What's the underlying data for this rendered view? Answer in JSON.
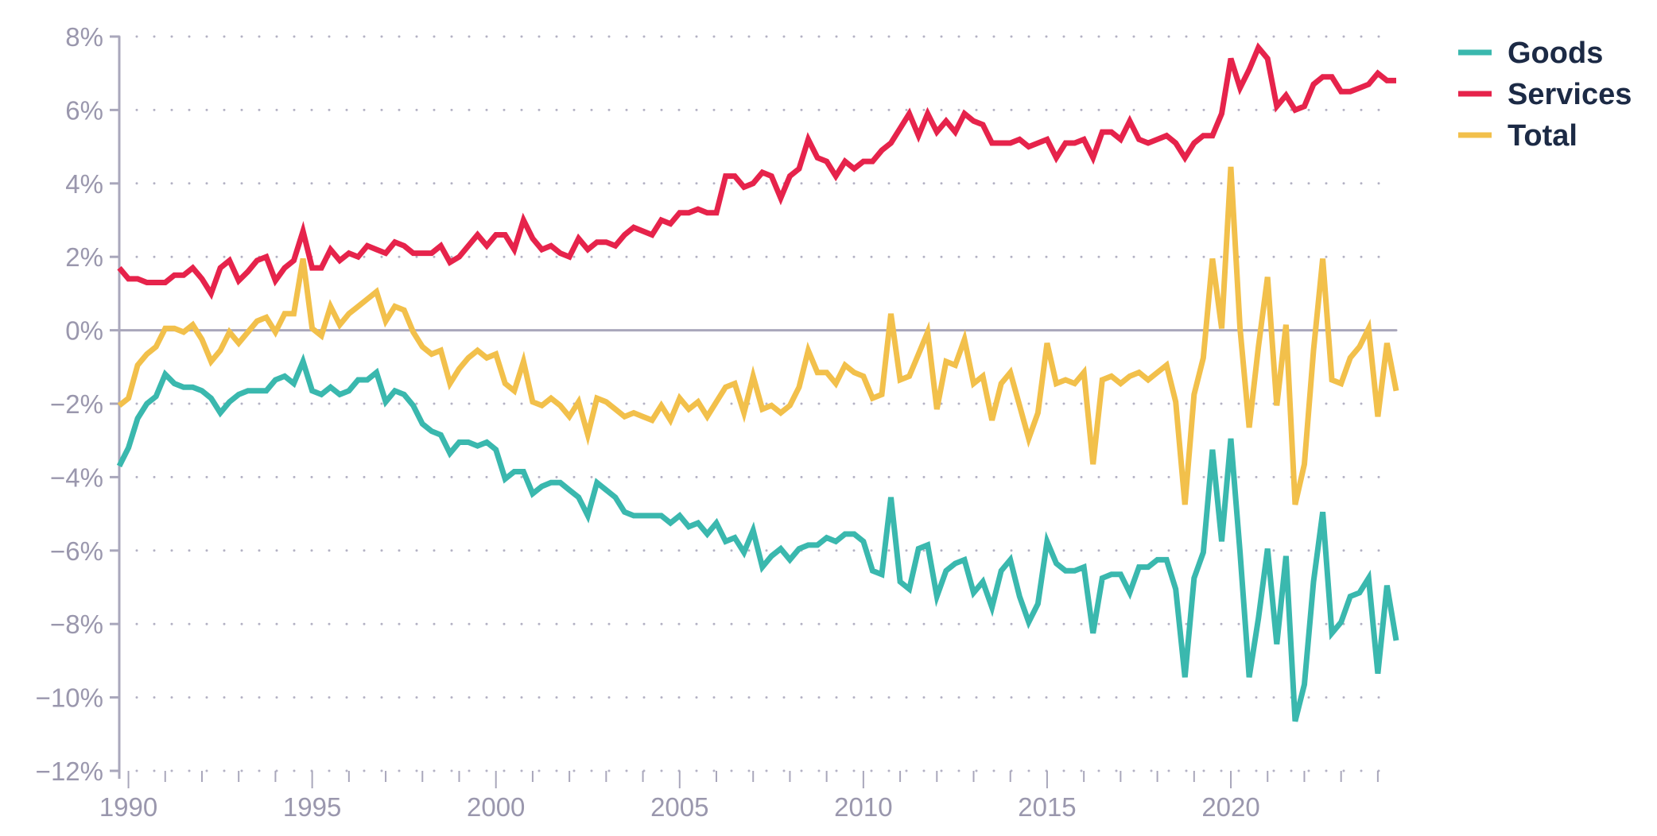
{
  "chart_data": {
    "type": "line",
    "title": "",
    "xlabel": "",
    "ylabel": "",
    "x_start": 1989.75,
    "x_step": 0.25,
    "xlim": [
      1989.75,
      2024.5
    ],
    "ylim": [
      -12,
      8
    ],
    "y_ticks": [
      8,
      6,
      4,
      2,
      0,
      -2,
      -4,
      -6,
      -8,
      -10,
      -12
    ],
    "y_tick_labels": [
      "8%",
      "6%",
      "4%",
      "2%",
      "0%",
      "−2%",
      "−4%",
      "−6%",
      "−8%",
      "−10%",
      "−12%"
    ],
    "x_ticks": [
      1990,
      1995,
      2000,
      2005,
      2010,
      2015,
      2020
    ],
    "x_tick_labels": [
      "1990",
      "1995",
      "2000",
      "2005",
      "2010",
      "2015",
      "2020"
    ],
    "grid": "horizontal-dotted",
    "legend_position": "top-right",
    "series": [
      {
        "name": "Goods",
        "color": "#3ab8ae",
        "values": [
          -3.7,
          -3.2,
          -2.4,
          -2.0,
          -1.8,
          -1.2,
          -1.45,
          -1.55,
          -1.55,
          -1.65,
          -1.85,
          -2.25,
          -1.95,
          -1.75,
          -1.65,
          -1.65,
          -1.65,
          -1.35,
          -1.25,
          -1.45,
          -0.85,
          -1.65,
          -1.75,
          -1.55,
          -1.75,
          -1.65,
          -1.35,
          -1.35,
          -1.15,
          -1.95,
          -1.65,
          -1.75,
          -2.05,
          -2.55,
          -2.75,
          -2.85,
          -3.35,
          -3.05,
          -3.05,
          -3.15,
          -3.05,
          -3.25,
          -4.05,
          -3.85,
          -3.85,
          -4.45,
          -4.25,
          -4.15,
          -4.15,
          -4.35,
          -4.55,
          -5.05,
          -4.15,
          -4.35,
          -4.55,
          -4.95,
          -5.05,
          -5.05,
          -5.05,
          -5.05,
          -5.25,
          -5.05,
          -5.35,
          -5.25,
          -5.55,
          -5.25,
          -5.75,
          -5.65,
          -6.05,
          -5.45,
          -6.45,
          -6.15,
          -5.95,
          -6.25,
          -5.95,
          -5.85,
          -5.85,
          -5.65,
          -5.75,
          -5.55,
          -5.55,
          -5.75,
          -6.55,
          -6.65,
          -4.55,
          -6.85,
          -7.05,
          -5.95,
          -5.85,
          -7.25,
          -6.55,
          -6.35,
          -6.25,
          -7.15,
          -6.85,
          -7.55,
          -6.55,
          -6.25,
          -7.25,
          -7.95,
          -7.45,
          -5.75,
          -6.35,
          -6.55,
          -6.55,
          -6.45,
          -8.25,
          -6.75,
          -6.65,
          -6.65,
          -7.15,
          -6.45,
          -6.45,
          -6.25,
          -6.25,
          -7.05,
          -9.45,
          -6.75,
          -6.05,
          -3.25,
          -5.75,
          -2.95,
          -6.05,
          -9.45,
          -7.85,
          -5.95,
          -8.55,
          -6.15,
          -10.65,
          -9.65,
          -6.85,
          -4.95,
          -8.25,
          -7.95,
          -7.25,
          -7.15,
          -6.75,
          -9.35,
          -6.95,
          -8.45
        ]
      },
      {
        "name": "Services",
        "color": "#e6234b",
        "values": [
          1.7,
          1.4,
          1.4,
          1.3,
          1.3,
          1.3,
          1.5,
          1.5,
          1.7,
          1.4,
          1.0,
          1.7,
          1.9,
          1.35,
          1.6,
          1.9,
          2.0,
          1.35,
          1.7,
          1.9,
          2.7,
          1.7,
          1.7,
          2.2,
          1.9,
          2.1,
          2.0,
          2.3,
          2.2,
          2.1,
          2.4,
          2.3,
          2.1,
          2.1,
          2.1,
          2.3,
          1.85,
          2.0,
          2.3,
          2.6,
          2.3,
          2.6,
          2.6,
          2.2,
          3.0,
          2.5,
          2.2,
          2.3,
          2.1,
          2.0,
          2.5,
          2.2,
          2.4,
          2.4,
          2.3,
          2.6,
          2.8,
          2.7,
          2.6,
          3.0,
          2.9,
          3.2,
          3.2,
          3.3,
          3.2,
          3.2,
          4.2,
          4.2,
          3.9,
          4.0,
          4.3,
          4.2,
          3.6,
          4.2,
          4.4,
          5.2,
          4.7,
          4.6,
          4.2,
          4.6,
          4.4,
          4.6,
          4.6,
          4.9,
          5.1,
          5.5,
          5.9,
          5.3,
          5.9,
          5.4,
          5.7,
          5.4,
          5.9,
          5.7,
          5.6,
          5.1,
          5.1,
          5.1,
          5.2,
          5.0,
          5.1,
          5.2,
          4.7,
          5.1,
          5.1,
          5.2,
          4.7,
          5.4,
          5.4,
          5.2,
          5.7,
          5.2,
          5.1,
          5.2,
          5.3,
          5.1,
          4.7,
          5.1,
          5.3,
          5.3,
          5.9,
          7.4,
          6.6,
          7.1,
          7.7,
          7.4,
          6.1,
          6.4,
          6.0,
          6.1,
          6.7,
          6.9,
          6.9,
          6.5,
          6.5,
          6.6,
          6.7,
          7.0,
          6.8,
          6.8
        ]
      },
      {
        "name": "Total",
        "color": "#f2c04b",
        "values": [
          -2.05,
          -1.85,
          -0.95,
          -0.65,
          -0.45,
          0.05,
          0.05,
          -0.05,
          0.15,
          -0.25,
          -0.85,
          -0.55,
          -0.05,
          -0.35,
          -0.05,
          0.25,
          0.35,
          -0.05,
          0.45,
          0.45,
          1.95,
          0.05,
          -0.15,
          0.65,
          0.15,
          0.45,
          0.65,
          0.85,
          1.05,
          0.25,
          0.65,
          0.55,
          -0.05,
          -0.45,
          -0.65,
          -0.55,
          -1.45,
          -1.05,
          -0.75,
          -0.55,
          -0.75,
          -0.65,
          -1.45,
          -1.65,
          -0.85,
          -1.95,
          -2.05,
          -1.85,
          -2.05,
          -2.35,
          -1.95,
          -2.85,
          -1.85,
          -1.95,
          -2.15,
          -2.35,
          -2.25,
          -2.35,
          -2.45,
          -2.05,
          -2.45,
          -1.85,
          -2.15,
          -1.95,
          -2.35,
          -1.95,
          -1.55,
          -1.45,
          -2.25,
          -1.25,
          -2.15,
          -2.05,
          -2.25,
          -2.05,
          -1.55,
          -0.55,
          -1.15,
          -1.15,
          -1.45,
          -0.95,
          -1.15,
          -1.25,
          -1.85,
          -1.75,
          0.45,
          -1.35,
          -1.25,
          -0.65,
          -0.05,
          -2.15,
          -0.85,
          -0.95,
          -0.25,
          -1.45,
          -1.25,
          -2.45,
          -1.45,
          -1.15,
          -2.05,
          -2.95,
          -2.25,
          -0.35,
          -1.45,
          -1.35,
          -1.45,
          -1.15,
          -3.65,
          -1.35,
          -1.25,
          -1.45,
          -1.25,
          -1.15,
          -1.35,
          -1.15,
          -0.95,
          -1.95,
          -4.75,
          -1.75,
          -0.75,
          1.95,
          0.05,
          4.45,
          0.05,
          -2.65,
          -0.45,
          1.45,
          -2.05,
          0.15,
          -4.75,
          -3.65,
          -0.55,
          1.95,
          -1.35,
          -1.45,
          -0.75,
          -0.45,
          0.05,
          -2.35,
          -0.35,
          -1.65
        ]
      }
    ]
  }
}
